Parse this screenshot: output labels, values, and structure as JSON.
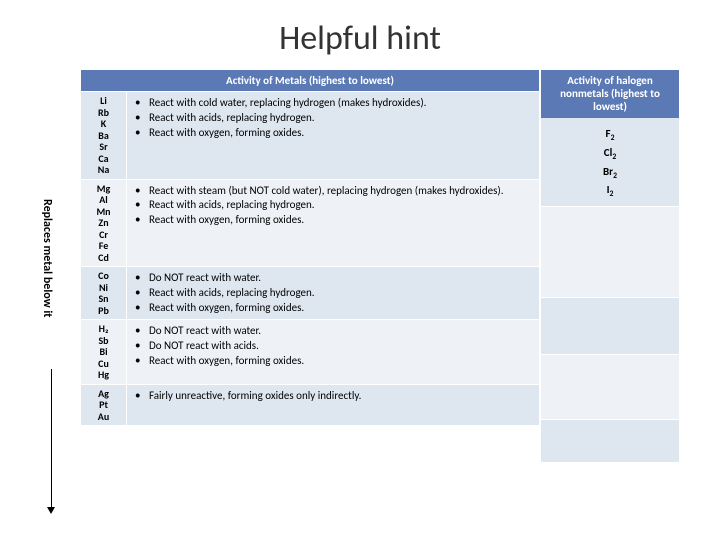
{
  "title": "Helpful hint",
  "vertical_label": "Replaces metal below it",
  "metals": {
    "header": "Activity of Metals (highest to lowest)",
    "rows": [
      {
        "elements": "Li\nRb\nK\nBa\nSr\nCa\nNa",
        "bullets": [
          "React with cold water, replacing hydrogen (makes hydroxides).",
          "React with acids, replacing hydrogen.",
          "React with oxygen, forming oxides."
        ]
      },
      {
        "elements": "Mg\nAl\nMn\nZn\nCr\nFe\nCd",
        "bullets": [
          "React with steam (but NOT cold water), replacing hydrogen (makes hydroxides).",
          "React with acids, replacing hydrogen.",
          "React with oxygen, forming oxides."
        ]
      },
      {
        "elements": "Co\nNi\nSn\nPb",
        "bullets": [
          "Do NOT react with water.",
          "React with acids, replacing hydrogen.",
          "React with oxygen, forming oxides."
        ]
      },
      {
        "elements": "H₂\nSb\nBi\nCu\nHg",
        "bullets": [
          "Do NOT react with water.",
          "Do NOT react with acids.",
          "React with oxygen, forming oxides."
        ]
      },
      {
        "elements": "Ag\nPt\nAu",
        "bullets": [
          "Fairly unreactive, forming oxides only indirectly."
        ]
      }
    ]
  },
  "halogens": {
    "header": "Activity of halogen nonmetals (highest to lowest)",
    "items": [
      "F₂",
      "Cl₂",
      "Br₂",
      "I₂"
    ]
  },
  "colors": {
    "header_bg": "#5b7ab5",
    "row_bg": "#dee6f0",
    "row_alt_bg": "#eef2f7"
  }
}
